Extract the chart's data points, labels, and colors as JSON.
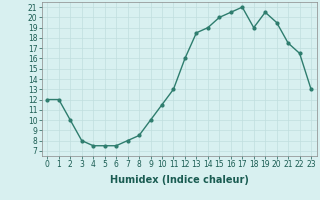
{
  "x": [
    0,
    1,
    2,
    3,
    4,
    5,
    6,
    7,
    8,
    9,
    10,
    11,
    12,
    13,
    14,
    15,
    16,
    17,
    18,
    19,
    20,
    21,
    22,
    23
  ],
  "y": [
    12,
    12,
    10,
    8,
    7.5,
    7.5,
    7.5,
    8,
    8.5,
    10,
    11.5,
    13,
    16,
    18.5,
    19,
    20,
    20.5,
    21,
    19,
    20.5,
    19.5,
    17.5,
    16.5,
    13
  ],
  "line_color": "#2e7d6e",
  "marker": "o",
  "marker_size": 2,
  "bg_color": "#d8f0f0",
  "grid_color": "#c0dede",
  "xlabel": "Humidex (Indice chaleur)",
  "xlim": [
    -0.5,
    23.5
  ],
  "ylim": [
    6.5,
    21.5
  ],
  "yticks": [
    7,
    8,
    9,
    10,
    11,
    12,
    13,
    14,
    15,
    16,
    17,
    18,
    19,
    20,
    21
  ],
  "xticks": [
    0,
    1,
    2,
    3,
    4,
    5,
    6,
    7,
    8,
    9,
    10,
    11,
    12,
    13,
    14,
    15,
    16,
    17,
    18,
    19,
    20,
    21,
    22,
    23
  ],
  "tick_fontsize": 5.5,
  "xlabel_fontsize": 7,
  "line_width": 1.0
}
